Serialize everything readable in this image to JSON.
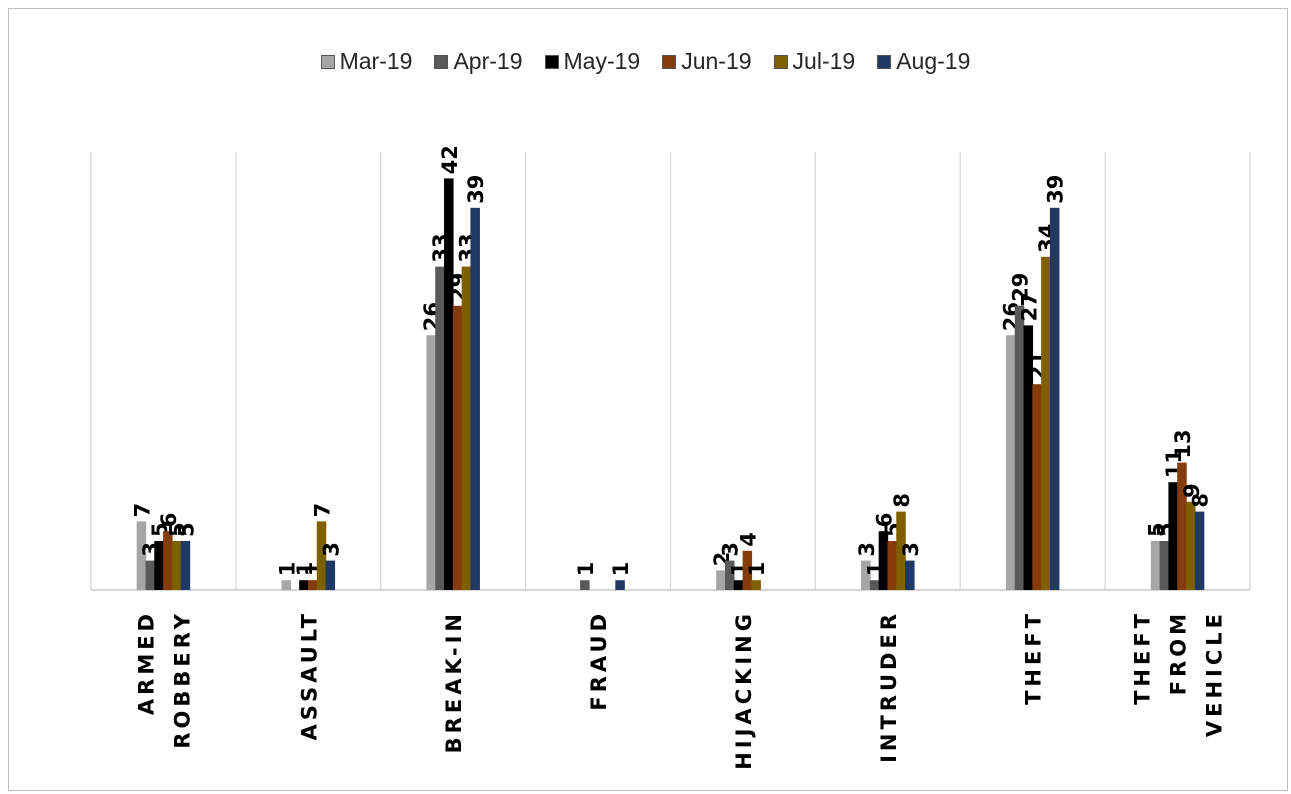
{
  "chart_data": {
    "type": "bar",
    "categories": [
      [
        "ARMED",
        "ROBBERY"
      ],
      [
        "ASSAULT"
      ],
      [
        "BREAK-IN"
      ],
      [
        "FRAUD"
      ],
      [
        "HIJACKING"
      ],
      [
        "INTRUDER"
      ],
      [
        "THEFT"
      ],
      [
        "THEFT",
        "FROM",
        "VEHICLE"
      ]
    ],
    "series": [
      {
        "name": "Mar-19",
        "color": "#a6a6a6",
        "values": [
          7,
          1,
          26,
          null,
          2,
          3,
          26,
          5
        ]
      },
      {
        "name": "Apr-19",
        "color": "#595959",
        "values": [
          3,
          null,
          33,
          1,
          3,
          1,
          29,
          5
        ]
      },
      {
        "name": "May-19",
        "color": "#000000",
        "values": [
          5,
          1,
          42,
          null,
          1,
          6,
          27,
          11
        ]
      },
      {
        "name": "Jun-19",
        "color": "#843c0c",
        "values": [
          6,
          1,
          29,
          null,
          4,
          5,
          21,
          13
        ]
      },
      {
        "name": "Jul-19",
        "color": "#7f6000",
        "values": [
          5,
          7,
          33,
          null,
          1,
          8,
          34,
          9
        ]
      },
      {
        "name": "Aug-19",
        "color": "#1f3864",
        "values": [
          5,
          3,
          39,
          1,
          null,
          3,
          39,
          8
        ]
      }
    ],
    "ylim": [
      0,
      45
    ],
    "legend_position": "top",
    "gridlines": "vertical category separators",
    "data_labels": "rotated, above bars"
  }
}
